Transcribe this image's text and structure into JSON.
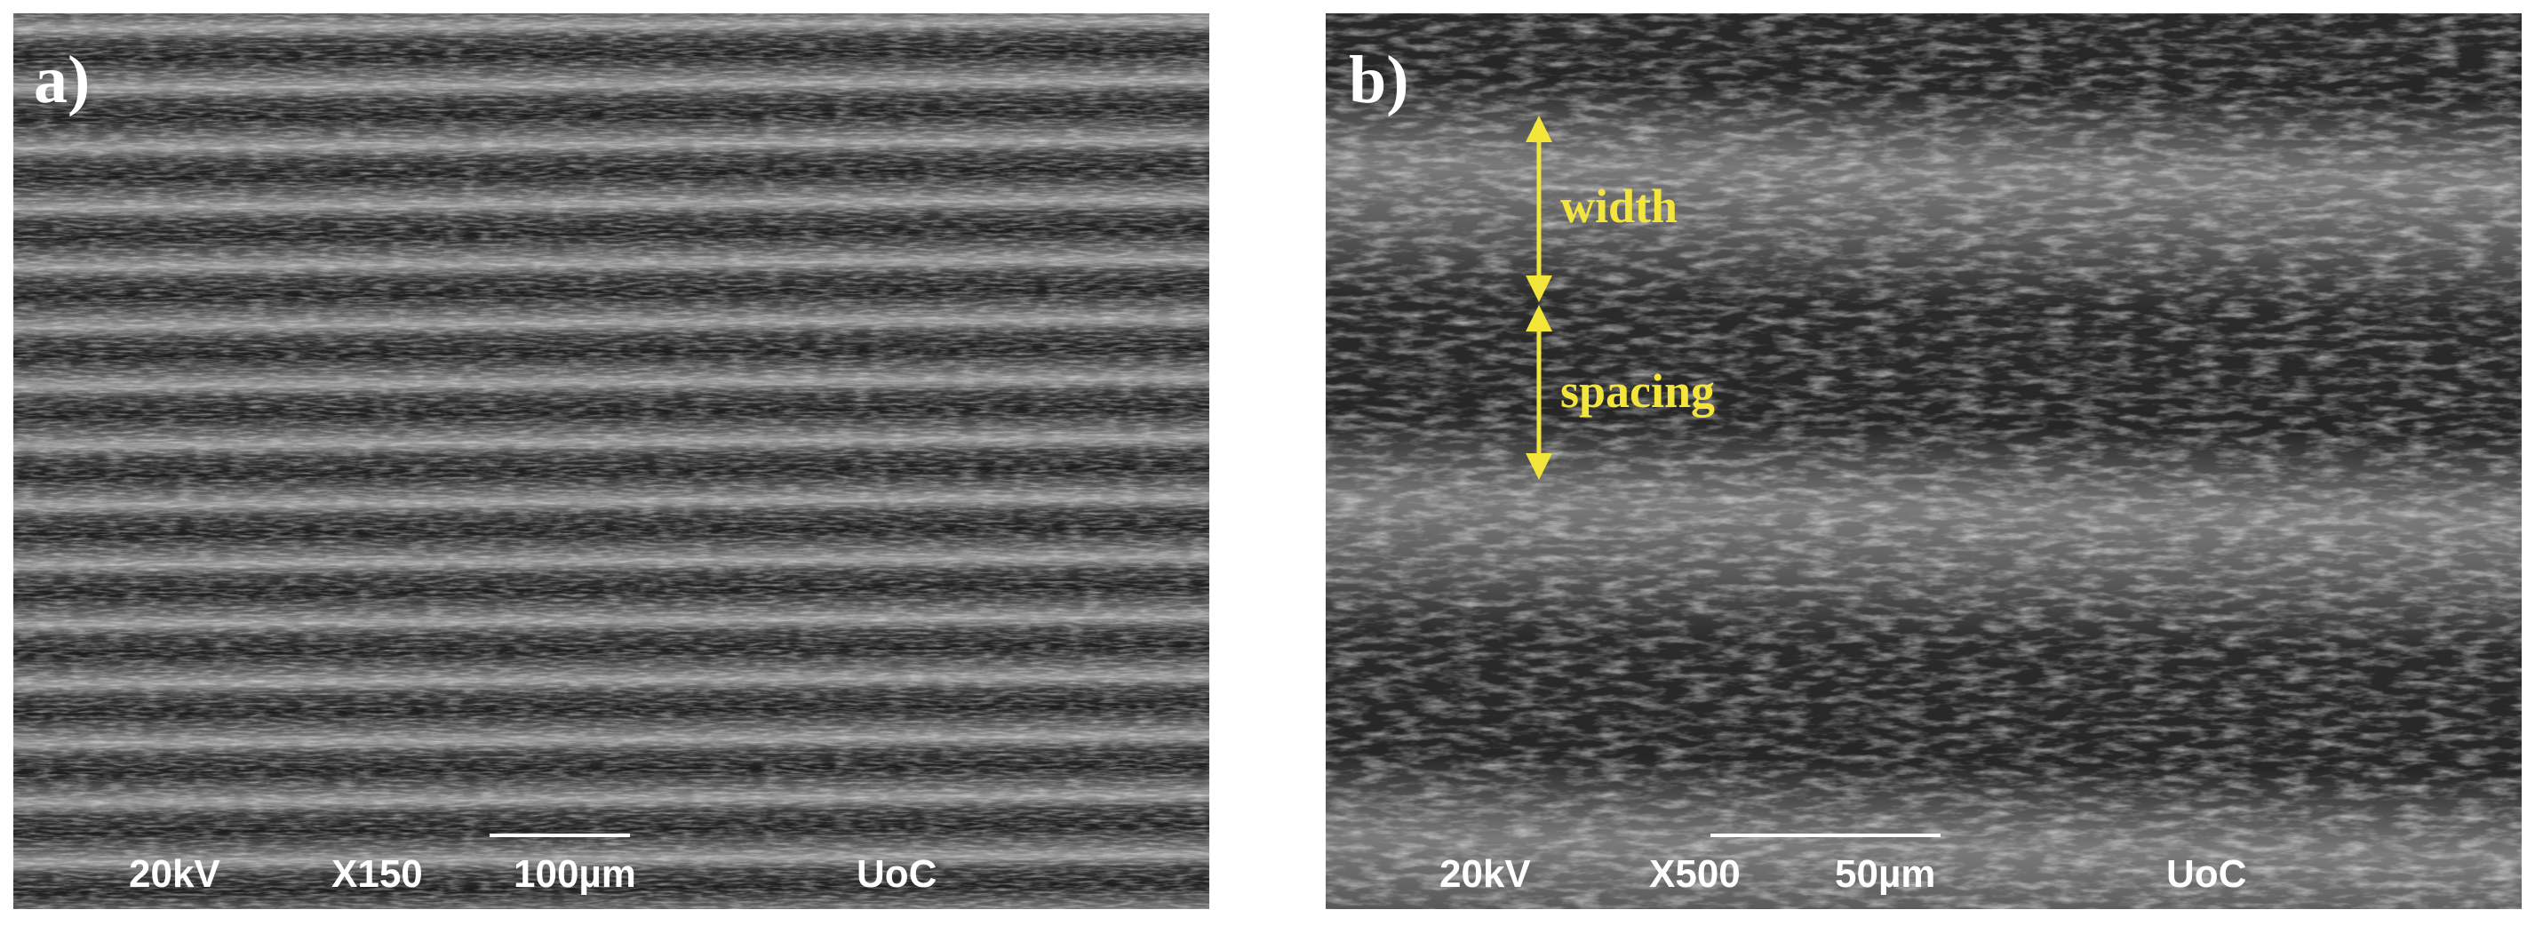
{
  "panels": [
    {
      "label": "a)",
      "info": {
        "voltage": "20kV",
        "magnification": "X150",
        "scale": "100µm",
        "institution": "UoC"
      }
    },
    {
      "label": "b)",
      "annotations": [
        "width",
        "spacing"
      ],
      "info": {
        "voltage": "20kV",
        "magnification": "X500",
        "scale": "50µm",
        "institution": "UoC"
      }
    }
  ]
}
